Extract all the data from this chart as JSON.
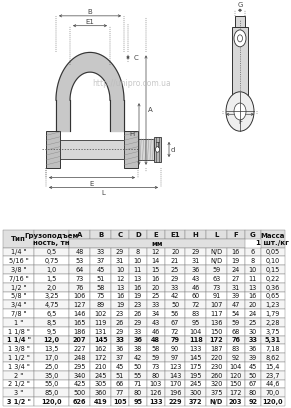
{
  "col_headers_row1": [
    "Тип",
    "Грузоподъем\nность, тн",
    "A",
    "B",
    "C",
    "D",
    "E",
    "E1",
    "H",
    "L",
    "F",
    "G",
    "Масса\n1 шт./кг"
  ],
  "col_headers_row2": [
    "",
    "",
    "мм",
    "",
    "",
    "",
    "",
    "",
    "",
    "",
    "",
    "",
    ""
  ],
  "rows": [
    [
      "1/4 \"",
      "0,5",
      "48",
      "33",
      "29",
      "8",
      "12",
      "20",
      "29",
      "N/D",
      "16",
      "6",
      "0,05"
    ],
    [
      "5/16 \"",
      "0,75",
      "53",
      "37",
      "31",
      "10",
      "14",
      "21",
      "31",
      "N/D",
      "19",
      "8",
      "0,10"
    ],
    [
      "3/8 \"",
      "1,0",
      "64",
      "45",
      "10",
      "11",
      "15",
      "25",
      "36",
      "59",
      "24",
      "10",
      "0,15"
    ],
    [
      "7/16 \"",
      "1,5",
      "73",
      "51",
      "12",
      "13",
      "16",
      "29",
      "43",
      "63",
      "27",
      "11",
      "0,22"
    ],
    [
      "1/2 \"",
      "2,0",
      "76",
      "58",
      "13",
      "16",
      "20",
      "33",
      "46",
      "73",
      "31",
      "13",
      "0,36"
    ],
    [
      "5/8 \"",
      "3,25",
      "106",
      "75",
      "16",
      "19",
      "25",
      "42",
      "60",
      "91",
      "39",
      "16",
      "0,65"
    ],
    [
      "3/4 \"",
      "4,75",
      "127",
      "89",
      "19",
      "23",
      "33",
      "50",
      "72",
      "107",
      "47",
      "20",
      "1,23"
    ],
    [
      "7/8 \"",
      "6,5",
      "146",
      "102",
      "23",
      "26",
      "34",
      "56",
      "83",
      "117",
      "54",
      "24",
      "1,79"
    ],
    [
      "1 \"",
      "8,5",
      "165",
      "119",
      "26",
      "29",
      "43",
      "67",
      "95",
      "136",
      "59",
      "25",
      "2,28"
    ],
    [
      "1 1/8 \"",
      "9,5",
      "186",
      "131",
      "29",
      "33",
      "46",
      "72",
      "104",
      "150",
      "68",
      "30",
      "3,75"
    ],
    [
      "1 1/4 \"",
      "12,0",
      "207",
      "145",
      "33",
      "36",
      "48",
      "79",
      "118",
      "172",
      "76",
      "33",
      "5,31"
    ],
    [
      "1 3/8 \"",
      "13,5",
      "227",
      "162",
      "36",
      "38",
      "58",
      "90",
      "133",
      "187",
      "83",
      "36",
      "7,18"
    ],
    [
      "1 1/2 \"",
      "17,0",
      "248",
      "172",
      "37",
      "42",
      "59",
      "97",
      "145",
      "220",
      "92",
      "39",
      "8,62"
    ],
    [
      "1 3/4 \"",
      "25,0",
      "295",
      "210",
      "45",
      "50",
      "73",
      "123",
      "175",
      "230",
      "104",
      "45",
      "15,4"
    ],
    [
      "2 \"",
      "35,0",
      "340",
      "245",
      "51",
      "55",
      "80",
      "143",
      "195",
      "260",
      "120",
      "50",
      "23,7"
    ],
    [
      "2 1/2 \"",
      "55,0",
      "425",
      "305",
      "66",
      "71",
      "103",
      "170",
      "245",
      "320",
      "150",
      "67",
      "44,6"
    ],
    [
      "3 \"",
      "85,0",
      "500",
      "360",
      "77",
      "80",
      "126",
      "196",
      "300",
      "375",
      "172",
      "80",
      "70,0"
    ],
    [
      "3 1/2 \"",
      "120,0",
      "626",
      "419",
      "105",
      "95",
      "133",
      "229",
      "372",
      "N/D",
      "203",
      "92",
      "120,0"
    ]
  ],
  "bold_rows": [
    10,
    17
  ],
  "bg_color": "#ffffff",
  "border_color": "#888888",
  "header_bg": "#e0e0e0",
  "alt_bg": "#f5f5f5",
  "text_color": "#111111",
  "font_size": 4.7,
  "header_font_size": 5.0,
  "watermark": "http://unipro.com.ua",
  "lc": "#333333",
  "dim_lc": "#444444"
}
